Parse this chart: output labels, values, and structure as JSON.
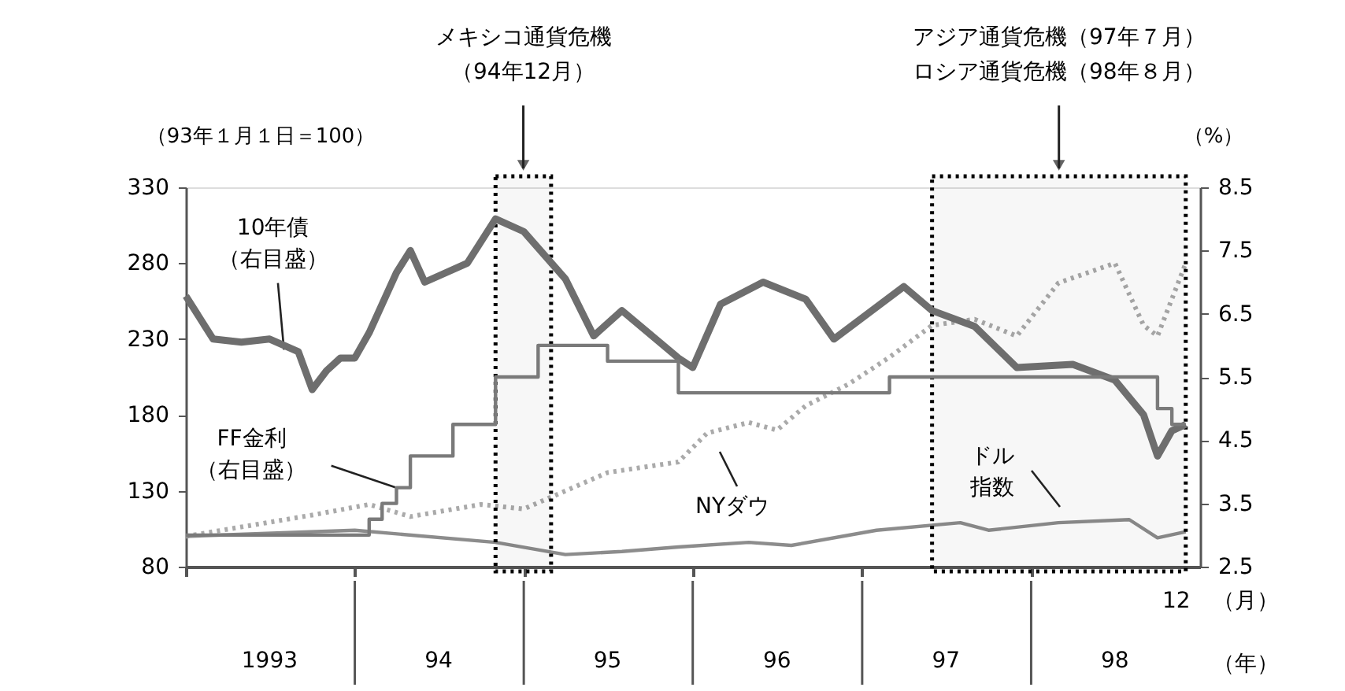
{
  "chart_data": {
    "type": "line",
    "ylabel": "（93年１月１日＝100）",
    "y2label": "（%）",
    "xlabel": "（年）",
    "xlim": [
      "1993-01",
      "1999-01"
    ],
    "xticks": [
      {
        "value": "1993-01",
        "label": null
      },
      {
        "value": "1994-01",
        "label": null
      },
      {
        "value": "1995-01",
        "label": null
      },
      {
        "value": "1996-01",
        "label": null
      },
      {
        "value": "1997-01",
        "label": null
      },
      {
        "value": "1998-01",
        "label": null
      },
      {
        "value": "1993-07",
        "label": "1993"
      },
      {
        "value": "1994-07",
        "label": "94"
      },
      {
        "value": "1995-07",
        "label": "95"
      },
      {
        "value": "1996-07",
        "label": "96"
      },
      {
        "value": "1997-07",
        "label": "97"
      },
      {
        "value": "1998-07",
        "label": "98"
      }
    ],
    "ylim": [
      80,
      330
    ],
    "yticks": [
      80,
      130,
      180,
      230,
      280,
      330
    ],
    "y2lim": [
      2.5,
      8.5
    ],
    "y2ticks": [
      2.5,
      3.5,
      4.5,
      5.5,
      6.5,
      7.5,
      8.5
    ],
    "grid": false,
    "series": [
      {
        "axis": "y",
        "color": "#aaaaaa",
        "line_style": "dotted",
        "x": [
          "1993-01",
          "1993-10",
          "1994-02",
          "1994-05",
          "1994-10",
          "1995-01",
          "1995-07",
          "1995-12",
          "1996-02",
          "1996-05",
          "1996-07",
          "1996-09",
          "1996-12",
          "1997-03",
          "1997-06",
          "1997-09",
          "1997-12",
          "1998-03",
          "1998-07",
          "1998-09",
          "1998-10",
          "1998-12"
        ],
        "values": [
          100,
          114,
          121,
          113,
          121,
          118,
          142,
          149,
          168,
          175,
          170,
          186,
          200,
          218,
          239,
          243,
          232,
          267,
          280,
          239,
          232,
          280
        ]
      },
      {
        "axis": "y",
        "color": "#8c8c8c",
        "line_style": "solid",
        "x": [
          "1993-01",
          "1994-01",
          "1994-11",
          "1995-04",
          "1995-08",
          "1995-12",
          "1996-05",
          "1996-08",
          "1997-02",
          "1997-08",
          "1997-10",
          "1998-03",
          "1998-08",
          "1998-10",
          "1998-12"
        ],
        "values": [
          100,
          104,
          96,
          88,
          90,
          93,
          96,
          94,
          104,
          109,
          104,
          109,
          111,
          99,
          103
        ]
      },
      {
        "axis": "y2",
        "color": "#6e6e6e",
        "line_style": "solid",
        "x": [
          "1993-01",
          "1993-03",
          "1993-05",
          "1993-07",
          "1993-09",
          "1993-10",
          "1993-11",
          "1993-12",
          "1994-01",
          "1994-02",
          "1994-04",
          "1994-05",
          "1994-06",
          "1994-09",
          "1994-11",
          "1995-01",
          "1995-04",
          "1995-06",
          "1995-08",
          "1995-12",
          "1996-01",
          "1996-03",
          "1996-06",
          "1996-09",
          "1996-11",
          "1997-04",
          "1997-06",
          "1997-09",
          "1997-12",
          "1998-04",
          "1998-07",
          "1998-09",
          "1998-10",
          "1998-11",
          "1998-12"
        ],
        "values": [
          6.78,
          6.1,
          6.05,
          6.1,
          5.9,
          5.3,
          5.6,
          5.8,
          5.8,
          6.2,
          7.15,
          7.5,
          7.0,
          7.3,
          8.0,
          7.8,
          7.05,
          6.15,
          6.55,
          5.8,
          5.65,
          6.65,
          7.0,
          6.73,
          6.1,
          6.93,
          6.55,
          6.3,
          5.65,
          5.7,
          5.45,
          4.9,
          4.25,
          4.65,
          4.75
        ]
      },
      {
        "type": "step",
        "axis": "y2",
        "color": "#7a7a7a",
        "line_style": "solid",
        "x": [
          "1993-01",
          "1994-02",
          "1994-03",
          "1994-04",
          "1994-05",
          "1994-08",
          "1994-11",
          "1995-02",
          "1995-07",
          "1995-12",
          "1997-03",
          "1998-10",
          "1998-11",
          "1998-12"
        ],
        "values": [
          3.0,
          3.25,
          3.5,
          3.75,
          4.25,
          4.75,
          5.5,
          6.0,
          5.75,
          5.25,
          5.5,
          5.0,
          4.75,
          4.75
        ]
      }
    ],
    "bands": [
      {
        "axis": "x",
        "from": "1994-11",
        "to": "1995-03",
        "label": "メキシコ通貨危機（94年12月）",
        "color": "#000000"
      },
      {
        "axis": "x",
        "from": "1997-06",
        "to": "1998-12",
        "label": "アジア通貨危機（97年７月）ロシア通貨危機（98年８月）",
        "color": "#000000"
      }
    ],
    "annotations": [
      {
        "text": "10年債（右目盛）",
        "x": "1993-08",
        "y": 223
      },
      {
        "text": "FF金利（右目盛）",
        "x": "1994-04",
        "y": 132
      },
      "NYダウ",
      "ドル指数",
      "12",
      "（月）"
    ]
  }
}
